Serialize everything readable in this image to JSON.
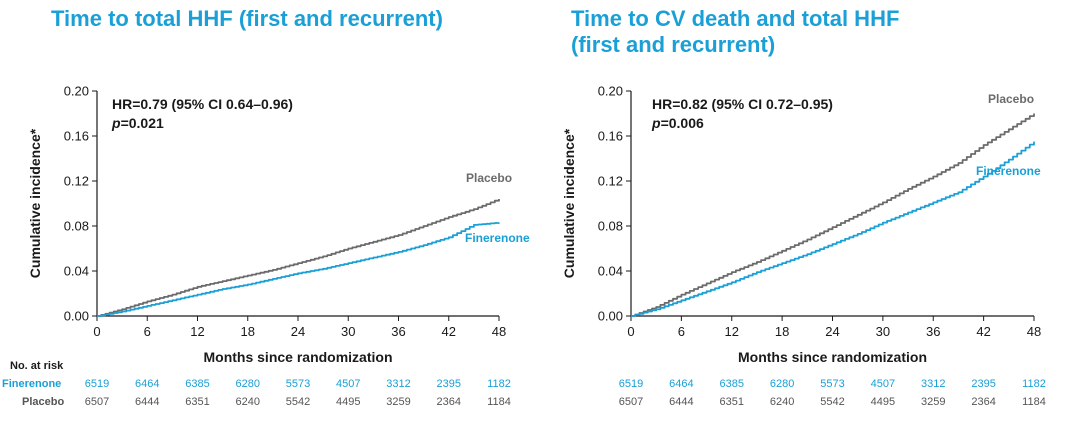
{
  "risk_table": {
    "header": "No. at risk",
    "row_labels": [
      "Finerenone",
      "Placebo"
    ]
  },
  "colors": {
    "finerenone": "#1aa0d6",
    "placebo": "#6b6b6b",
    "text": "#1a1a1a"
  },
  "chart_data": [
    {
      "type": "line",
      "title": "Time to total HHF (first and recurrent)",
      "xlabel": "Months since randomization",
      "ylabel": "Cumulative incidence*",
      "xlim": [
        0,
        48
      ],
      "ylim": [
        0,
        0.2
      ],
      "xticks": [
        0,
        6,
        12,
        18,
        24,
        30,
        36,
        42,
        48
      ],
      "yticks": [
        "0.00",
        "0.04",
        "0.08",
        "0.12",
        "0.16",
        "0.20"
      ],
      "annotations": {
        "hr": "HR=0.79 (95% CI 0.64–0.96)",
        "p_symbol": "p",
        "p_value": "=0.021"
      },
      "series": [
        {
          "name": "Placebo",
          "color": "#6b6b6b",
          "x": [
            0,
            3,
            6,
            9,
            12,
            15,
            18,
            21,
            24,
            27,
            30,
            33,
            36,
            39,
            42,
            45,
            48
          ],
          "y": [
            0,
            0.006,
            0.013,
            0.019,
            0.026,
            0.031,
            0.036,
            0.041,
            0.047,
            0.053,
            0.06,
            0.066,
            0.072,
            0.08,
            0.088,
            0.095,
            0.104
          ]
        },
        {
          "name": "Finerenone",
          "color": "#1aa0d6",
          "x": [
            0,
            3,
            6,
            9,
            12,
            15,
            18,
            21,
            24,
            27,
            30,
            33,
            36,
            39,
            42,
            45,
            48
          ],
          "y": [
            0,
            0.004,
            0.009,
            0.014,
            0.019,
            0.024,
            0.028,
            0.033,
            0.038,
            0.042,
            0.047,
            0.052,
            0.057,
            0.063,
            0.07,
            0.081,
            0.083
          ]
        }
      ],
      "at_risk": {
        "Finerenone": [
          "6519",
          "6464",
          "6385",
          "6280",
          "5573",
          "4507",
          "3312",
          "2395",
          "1182"
        ],
        "Placebo": [
          "6507",
          "6444",
          "6351",
          "6240",
          "5542",
          "4495",
          "3259",
          "2364",
          "1184"
        ]
      }
    },
    {
      "type": "line",
      "title": "Time to CV death and total HHF\n(first and recurrent)",
      "xlabel": "Months since randomization",
      "ylabel": "Cumulative incidence*",
      "xlim": [
        0,
        48
      ],
      "ylim": [
        0,
        0.2
      ],
      "xticks": [
        0,
        6,
        12,
        18,
        24,
        30,
        36,
        42,
        48
      ],
      "yticks": [
        "0.00",
        "0.04",
        "0.08",
        "0.12",
        "0.16",
        "0.20"
      ],
      "annotations": {
        "hr": "HR=0.82 (95% CI 0.72–0.95)",
        "p_symbol": "p",
        "p_value": "=0.006"
      },
      "series": [
        {
          "name": "Placebo",
          "color": "#6b6b6b",
          "x": [
            0,
            3,
            6,
            9,
            12,
            15,
            18,
            21,
            24,
            27,
            30,
            33,
            36,
            39,
            42,
            45,
            48
          ],
          "y": [
            0,
            0.008,
            0.019,
            0.029,
            0.039,
            0.048,
            0.058,
            0.068,
            0.079,
            0.09,
            0.101,
            0.113,
            0.124,
            0.136,
            0.152,
            0.166,
            0.18
          ]
        },
        {
          "name": "Finerenone",
          "color": "#1aa0d6",
          "x": [
            0,
            3,
            6,
            9,
            12,
            15,
            18,
            21,
            24,
            27,
            30,
            33,
            36,
            39,
            42,
            45,
            48
          ],
          "y": [
            0,
            0.006,
            0.014,
            0.022,
            0.03,
            0.039,
            0.047,
            0.055,
            0.064,
            0.073,
            0.083,
            0.092,
            0.101,
            0.11,
            0.124,
            0.139,
            0.155
          ]
        }
      ],
      "at_risk": {
        "Finerenone": [
          "6519",
          "6464",
          "6385",
          "6280",
          "5573",
          "4507",
          "3312",
          "2395",
          "1182"
        ],
        "Placebo": [
          "6507",
          "6444",
          "6351",
          "6240",
          "5542",
          "4495",
          "3259",
          "2364",
          "1184"
        ]
      }
    }
  ]
}
